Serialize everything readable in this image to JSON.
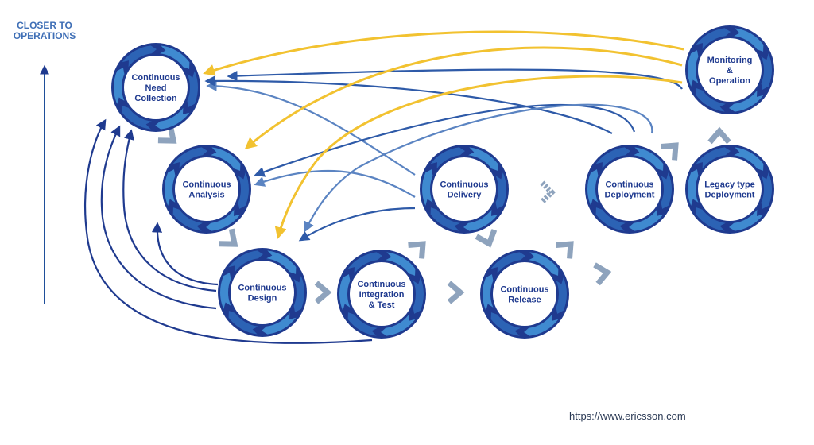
{
  "axis": {
    "label_line1": "CLOSER TO",
    "label_line2": "OPERATIONS"
  },
  "stages": [
    {
      "id": "need",
      "lines": [
        "Continuous",
        "Need",
        "Collection"
      ]
    },
    {
      "id": "analysis",
      "lines": [
        "Continuous",
        "Analysis"
      ]
    },
    {
      "id": "design",
      "lines": [
        "Continuous",
        "Design"
      ]
    },
    {
      "id": "integration",
      "lines": [
        "Continuous",
        "Integration",
        "& Test"
      ]
    },
    {
      "id": "delivery",
      "lines": [
        "Continuous",
        "Delivery"
      ]
    },
    {
      "id": "release",
      "lines": [
        "Continuous",
        "Release"
      ]
    },
    {
      "id": "deployment",
      "lines": [
        "Continuous",
        "Deployment"
      ]
    },
    {
      "id": "legacy",
      "lines": [
        "Legacy type",
        "Deployment"
      ]
    },
    {
      "id": "monitoring",
      "lines": [
        "Monitoring",
        "&",
        "Operation"
      ]
    }
  ],
  "source": "https://www.ericsson.com",
  "colors": {
    "ring_dark": "#1f3a8f",
    "ring_light": "#3f8ad0",
    "chevron": "#8ea3bd",
    "feedback_blue": "#2e5aa8",
    "feedback_light_blue": "#5b84c2",
    "feedback_yellow": "#f2c230",
    "axis": "#1f4f9a"
  }
}
